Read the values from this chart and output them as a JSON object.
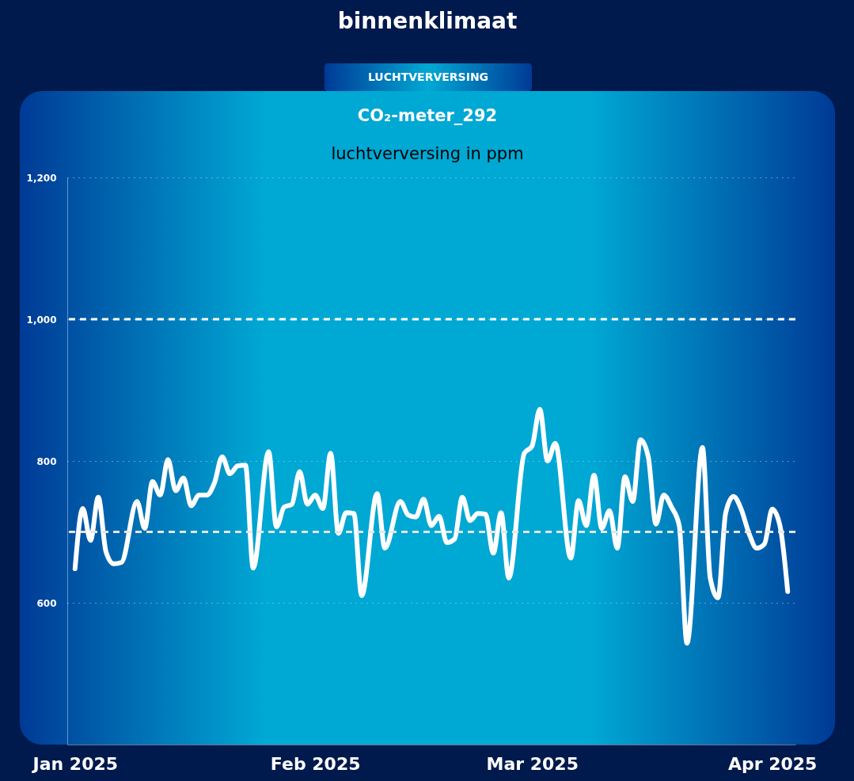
{
  "chart_data": {
    "type": "line",
    "title": "binnenklimaat",
    "subtitle": "CO₂-meter_292",
    "ylabel": "luchtverversing in ppm",
    "annotations": [
      "LUCHTVERVERSING"
    ],
    "x": [
      "2025-01-01",
      "2025-01-02",
      "2025-01-03",
      "2025-01-04",
      "2025-01-05",
      "2025-01-06",
      "2025-01-07",
      "2025-01-09",
      "2025-01-10",
      "2025-01-11",
      "2025-01-12",
      "2025-01-13",
      "2025-01-14",
      "2025-01-15",
      "2025-01-16",
      "2025-01-17",
      "2025-01-18",
      "2025-01-19",
      "2025-01-20",
      "2025-01-21",
      "2025-01-22",
      "2025-01-23",
      "2025-01-24",
      "2025-01-26",
      "2025-01-27",
      "2025-01-28",
      "2025-01-29",
      "2025-01-30",
      "2025-01-31",
      "2025-02-01",
      "2025-02-02",
      "2025-02-03",
      "2025-02-04",
      "2025-02-05",
      "2025-02-06",
      "2025-02-07",
      "2025-02-09",
      "2025-02-10",
      "2025-02-12",
      "2025-02-13",
      "2025-02-14",
      "2025-02-15",
      "2025-02-16",
      "2025-02-17",
      "2025-02-18",
      "2025-02-19",
      "2025-02-20",
      "2025-02-21",
      "2025-02-22",
      "2025-02-23",
      "2025-02-24",
      "2025-02-25",
      "2025-02-26",
      "2025-02-28",
      "2025-03-01",
      "2025-03-02",
      "2025-03-03",
      "2025-03-04",
      "2025-03-06",
      "2025-03-07",
      "2025-03-08",
      "2025-03-09",
      "2025-03-10",
      "2025-03-11",
      "2025-03-12",
      "2025-03-13",
      "2025-03-14",
      "2025-03-15",
      "2025-03-16",
      "2025-03-17",
      "2025-03-18",
      "2025-03-19",
      "2025-03-20",
      "2025-03-21",
      "2025-03-23",
      "2025-03-24",
      "2025-03-25",
      "2025-03-26",
      "2025-03-27",
      "2025-03-28",
      "2025-03-29",
      "2025-03-30",
      "2025-03-31",
      "2025-04-01",
      "2025-04-02",
      "2025-04-03"
    ],
    "series": [
      {
        "color": "#ffffff",
        "values": [
          648,
          733,
          688,
          749,
          672,
          655,
          657,
          743,
          705,
          771,
          752,
          802,
          758,
          776,
          737,
          752,
          752,
          769,
          806,
          782,
          793,
          794,
          649,
          813,
          707,
          735,
          739,
          785,
          739,
          752,
          733,
          811,
          698,
          727,
          726,
          610,
          754,
          677,
          743,
          724,
          721,
          746,
          709,
          722,
          685,
          690,
          749,
          716,
          726,
          725,
          670,
          727,
          635,
          811,
          821,
          873,
          800,
          825,
          663,
          744,
          709,
          780,
          705,
          730,
          677,
          778,
          743,
          830,
          806,
          711,
          752,
          735,
          709,
          543,
          819,
          635,
          607,
          727,
          750,
          732,
          698,
          677,
          683,
          732,
          709,
          616
        ]
      }
    ],
    "xlim": [
      "2024-12-31",
      "2025-04-04"
    ],
    "xticks": [
      {
        "value": "2025-01-01",
        "label": "Jan 2025"
      },
      {
        "value": "2025-02-01",
        "label": "Feb 2025"
      },
      {
        "value": "2025-03-01",
        "label": "Mar 2025"
      },
      {
        "value": "2025-04-01",
        "label": "Apr 2025"
      }
    ],
    "ylim": [
      400,
      1200
    ],
    "yticks": [
      600,
      800,
      {
        "value": 1000,
        "label": "1,000"
      },
      {
        "value": 1200,
        "label": "1,200"
      }
    ],
    "ref_lines": [
      {
        "axis": "y",
        "value": 1000,
        "label": null,
        "color": "#ffffff",
        "line_style": "dashed"
      },
      {
        "axis": "y",
        "value": 700,
        "label": null,
        "color": "#e6e6e6",
        "line_style": "dashed"
      }
    ],
    "grid": "y",
    "marker": "none",
    "line_style": "solid"
  }
}
